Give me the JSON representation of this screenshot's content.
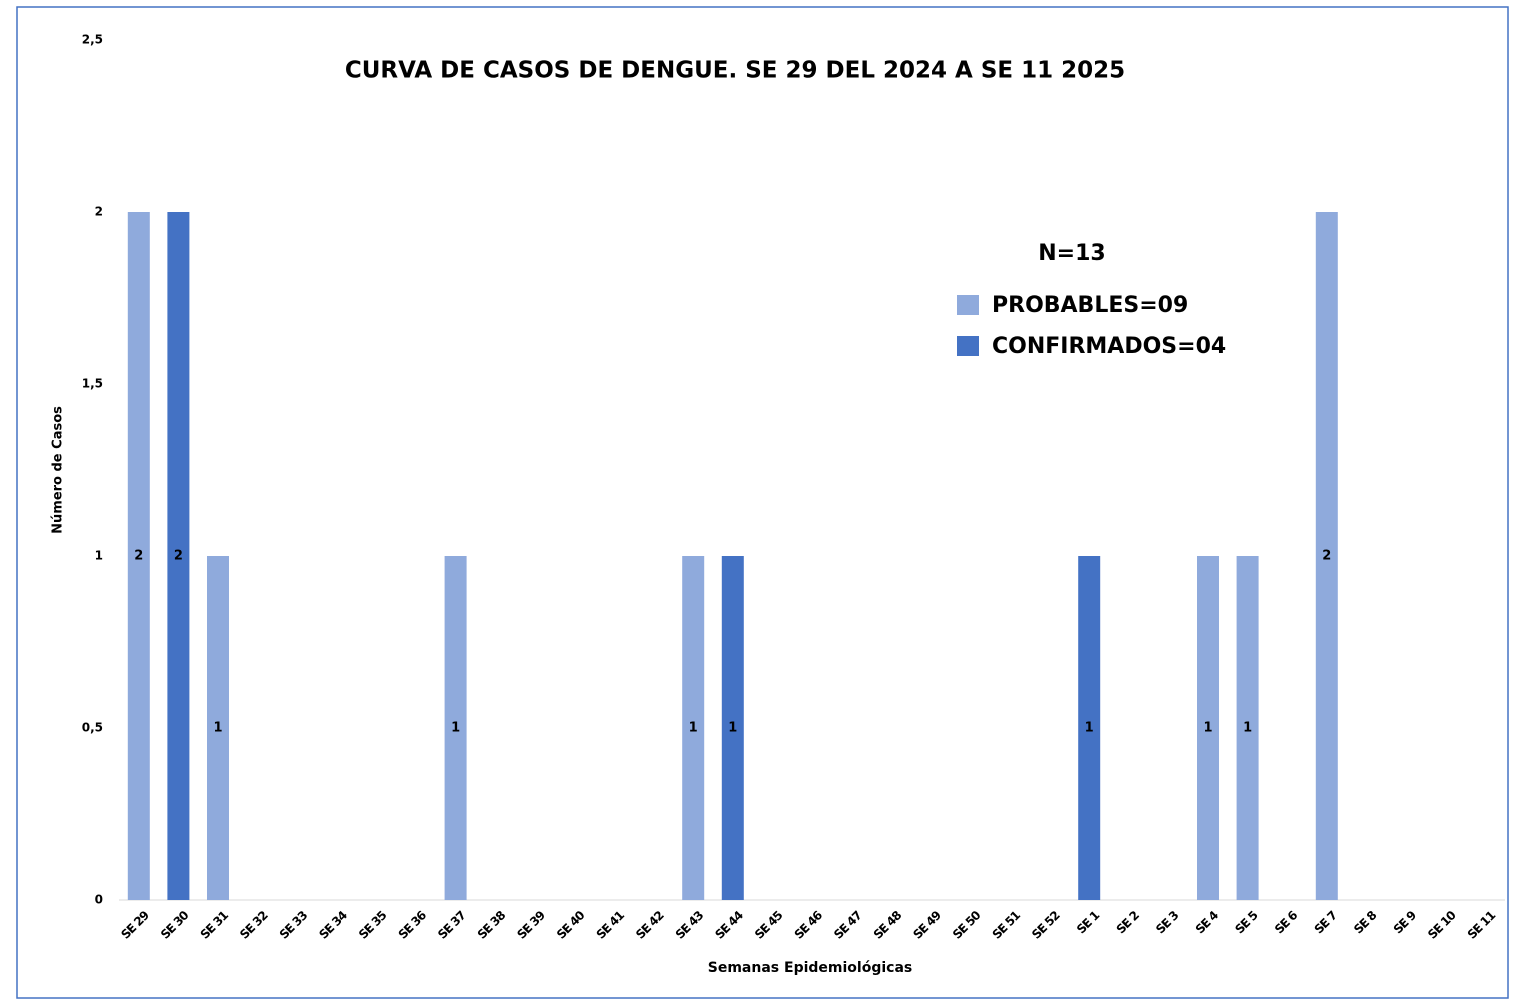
{
  "chart_data": {
    "type": "bar",
    "title": "CURVA DE CASOS DE DENGUE. SE 29 DEL 2024 A SE 11 2025",
    "annotation": "N=13",
    "x_label": "Semanas Epidemiológicas",
    "y_label": "Número de Casos",
    "categories": [
      "SE 29",
      "SE 30",
      "SE 31",
      "SE 32",
      "SE 33",
      "SE 34",
      "SE 35",
      "SE 36",
      "SE 37",
      "SE 38",
      "SE 39",
      "SE 40",
      "SE 41",
      "SE 42",
      "SE 43",
      "SE 44",
      "SE 45",
      "SE 46",
      "SE 47",
      "SE 48",
      "SE 49",
      "SE 50",
      "SE 51",
      "SE 52",
      "SE 1",
      "SE 2",
      "SE 3",
      "SE 4",
      "SE 5",
      "SE 6",
      "SE 7",
      "SE 8",
      "SE 9",
      "SE 10",
      "SE 11"
    ],
    "series": [
      {
        "name": "PROBABLES=09",
        "color": "#8faadc",
        "values": [
          2,
          null,
          1,
          null,
          null,
          null,
          null,
          null,
          1,
          null,
          null,
          null,
          null,
          null,
          1,
          null,
          null,
          null,
          null,
          null,
          null,
          null,
          null,
          null,
          null,
          null,
          null,
          1,
          1,
          null,
          2,
          null,
          null,
          null,
          null
        ]
      },
      {
        "name": "CONFIRMADOS=04",
        "color": "#4472c4",
        "values": [
          null,
          2,
          null,
          null,
          null,
          null,
          null,
          null,
          null,
          null,
          null,
          null,
          null,
          null,
          null,
          1,
          null,
          null,
          null,
          null,
          null,
          null,
          null,
          null,
          1,
          null,
          null,
          null,
          null,
          null,
          null,
          null,
          null,
          null,
          null
        ]
      }
    ],
    "ylim": [
      0,
      2.5
    ],
    "yticks": [
      0,
      {
        "value": 0.5,
        "label": "0,5"
      },
      1,
      {
        "value": 1.5,
        "label": "1,5"
      },
      2,
      {
        "value": 2.5,
        "label": "2,5"
      }
    ],
    "grid": false,
    "legend": "upper-right"
  }
}
